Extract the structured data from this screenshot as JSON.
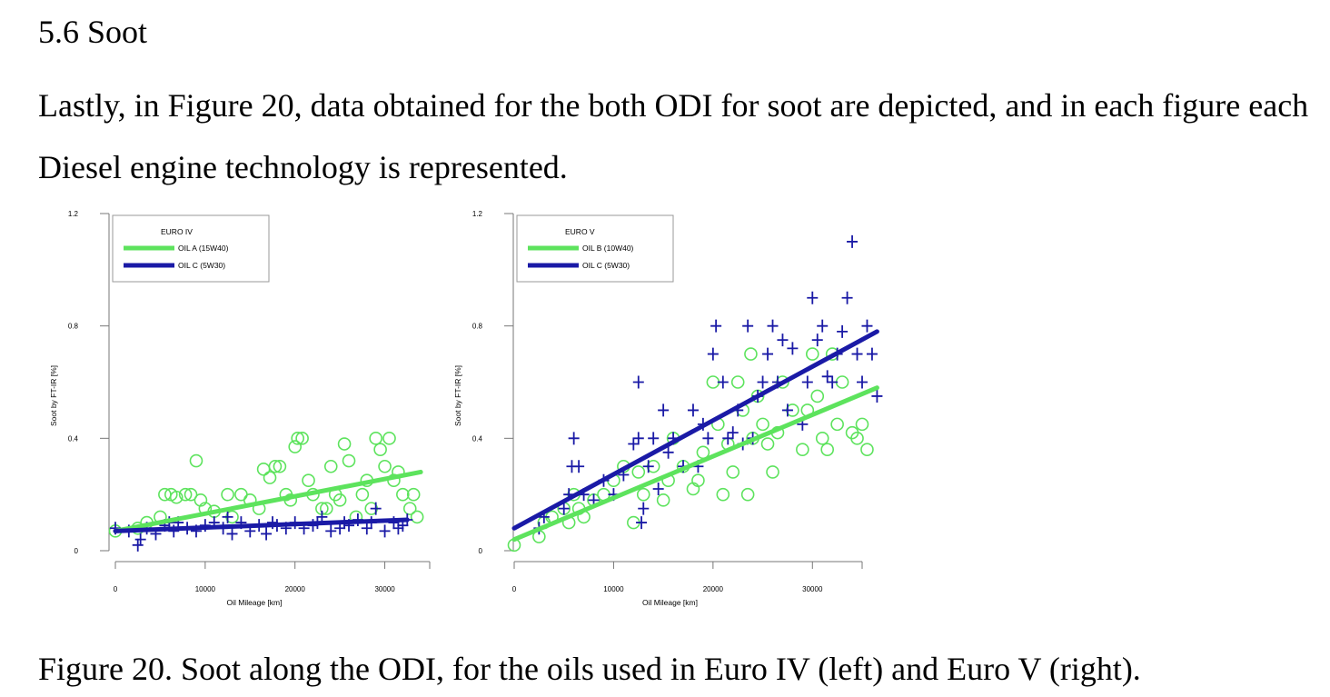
{
  "section": {
    "heading": "5.6 Soot"
  },
  "paragraph": "Lastly, in Figure 20, data obtained for the both ODI for soot are depicted, and in each figure each Diesel engine technology is represented.",
  "caption": "Figure 20. Soot along the ODI, for the oils used in Euro IV (left) and Euro V (right).",
  "colors": {
    "green": "#5de35d",
    "blue": "#1a1aa6"
  },
  "chart_data": [
    {
      "type": "scatter",
      "xlabel": "Oil Mileage [km]",
      "ylabel": "Soot by FT-IR [%]",
      "xlim": [
        0,
        35000
      ],
      "ylim": [
        0,
        1.2
      ],
      "xticks": [
        0,
        10000,
        20000,
        30000
      ],
      "yticks": [
        0,
        0.4,
        0.8,
        1.2
      ],
      "legend_title": "EURO IV",
      "legend_position": "top-left",
      "series": [
        {
          "name": "OIL A (15W40)",
          "marker": "circle",
          "color": "#5de35d",
          "trend": [
            [
              0,
              0.07
            ],
            [
              34000,
              0.28
            ]
          ],
          "points": [
            [
              0,
              0.07
            ],
            [
              2500,
              0.08
            ],
            [
              3500,
              0.1
            ],
            [
              5000,
              0.12
            ],
            [
              5500,
              0.2
            ],
            [
              6200,
              0.2
            ],
            [
              6800,
              0.19
            ],
            [
              7800,
              0.2
            ],
            [
              8400,
              0.2
            ],
            [
              9000,
              0.32
            ],
            [
              9500,
              0.18
            ],
            [
              10000,
              0.15
            ],
            [
              11000,
              0.14
            ],
            [
              12500,
              0.2
            ],
            [
              13000,
              0.12
            ],
            [
              14000,
              0.2
            ],
            [
              15000,
              0.18
            ],
            [
              16000,
              0.15
            ],
            [
              16500,
              0.29
            ],
            [
              17200,
              0.26
            ],
            [
              17800,
              0.3
            ],
            [
              18300,
              0.3
            ],
            [
              19000,
              0.2
            ],
            [
              19500,
              0.18
            ],
            [
              20000,
              0.37
            ],
            [
              20300,
              0.4
            ],
            [
              20800,
              0.4
            ],
            [
              21500,
              0.25
            ],
            [
              22000,
              0.2
            ],
            [
              23000,
              0.15
            ],
            [
              24000,
              0.3
            ],
            [
              24500,
              0.2
            ],
            [
              25000,
              0.18
            ],
            [
              25500,
              0.38
            ],
            [
              26000,
              0.32
            ],
            [
              26800,
              0.12
            ],
            [
              27500,
              0.2
            ],
            [
              28500,
              0.15
            ],
            [
              29000,
              0.4
            ],
            [
              29500,
              0.36
            ],
            [
              30000,
              0.3
            ],
            [
              30500,
              0.4
            ],
            [
              31000,
              0.25
            ],
            [
              31500,
              0.28
            ],
            [
              32000,
              0.2
            ],
            [
              32800,
              0.15
            ],
            [
              33200,
              0.2
            ],
            [
              33600,
              0.12
            ],
            [
              28000,
              0.25
            ],
            [
              23500,
              0.15
            ]
          ]
        },
        {
          "name": "OIL C (5W30)",
          "marker": "plus",
          "color": "#1a1aa6",
          "trend": [
            [
              0,
              0.07
            ],
            [
              32500,
              0.11
            ]
          ],
          "points": [
            [
              0,
              0.08
            ],
            [
              1500,
              0.07
            ],
            [
              2500,
              0.02
            ],
            [
              2800,
              0.04
            ],
            [
              3500,
              0.08
            ],
            [
              4500,
              0.06
            ],
            [
              5500,
              0.09
            ],
            [
              6000,
              0.1
            ],
            [
              6500,
              0.07
            ],
            [
              7000,
              0.1
            ],
            [
              8000,
              0.08
            ],
            [
              9000,
              0.07
            ],
            [
              10000,
              0.09
            ],
            [
              11000,
              0.1
            ],
            [
              12000,
              0.08
            ],
            [
              12500,
              0.12
            ],
            [
              13000,
              0.06
            ],
            [
              14000,
              0.1
            ],
            [
              15000,
              0.07
            ],
            [
              16000,
              0.09
            ],
            [
              16800,
              0.06
            ],
            [
              17500,
              0.1
            ],
            [
              18000,
              0.09
            ],
            [
              19000,
              0.08
            ],
            [
              20000,
              0.1
            ],
            [
              21000,
              0.08
            ],
            [
              22000,
              0.09
            ],
            [
              22500,
              0.1
            ],
            [
              23000,
              0.12
            ],
            [
              24000,
              0.07
            ],
            [
              25000,
              0.08
            ],
            [
              25500,
              0.1
            ],
            [
              26000,
              0.09
            ],
            [
              27000,
              0.11
            ],
            [
              28000,
              0.08
            ],
            [
              28500,
              0.1
            ],
            [
              29000,
              0.15
            ],
            [
              30000,
              0.07
            ],
            [
              31000,
              0.1
            ],
            [
              31500,
              0.08
            ],
            [
              32000,
              0.09
            ],
            [
              32500,
              0.11
            ]
          ]
        }
      ]
    },
    {
      "type": "scatter",
      "xlabel": "Oil Mileage [km]",
      "ylabel": "Soot by FT-IR [%]",
      "xlim": [
        0,
        35000
      ],
      "ylim": [
        0,
        1.2
      ],
      "xticks": [
        0,
        10000,
        20000,
        30000
      ],
      "yticks": [
        0,
        0.4,
        0.8,
        1.2
      ],
      "legend_title": "EURO V",
      "legend_position": "top-left",
      "series": [
        {
          "name": "OIL B (10W40)",
          "marker": "circle",
          "color": "#5de35d",
          "trend": [
            [
              0,
              0.04
            ],
            [
              36500,
              0.58
            ]
          ],
          "points": [
            [
              0,
              0.02
            ],
            [
              2500,
              0.05
            ],
            [
              3000,
              0.1
            ],
            [
              3800,
              0.12
            ],
            [
              5000,
              0.15
            ],
            [
              5500,
              0.1
            ],
            [
              6000,
              0.2
            ],
            [
              6500,
              0.15
            ],
            [
              7000,
              0.12
            ],
            [
              8000,
              0.18
            ],
            [
              9000,
              0.2
            ],
            [
              10000,
              0.25
            ],
            [
              11000,
              0.3
            ],
            [
              12000,
              0.1
            ],
            [
              12500,
              0.28
            ],
            [
              13000,
              0.2
            ],
            [
              14000,
              0.3
            ],
            [
              15000,
              0.18
            ],
            [
              15500,
              0.25
            ],
            [
              16000,
              0.4
            ],
            [
              17000,
              0.3
            ],
            [
              18000,
              0.22
            ],
            [
              18500,
              0.25
            ],
            [
              19000,
              0.35
            ],
            [
              20000,
              0.6
            ],
            [
              20500,
              0.45
            ],
            [
              21000,
              0.2
            ],
            [
              21500,
              0.38
            ],
            [
              22000,
              0.28
            ],
            [
              23000,
              0.5
            ],
            [
              23500,
              0.2
            ],
            [
              24000,
              0.4
            ],
            [
              24500,
              0.55
            ],
            [
              25000,
              0.45
            ],
            [
              25500,
              0.38
            ],
            [
              26000,
              0.28
            ],
            [
              26500,
              0.42
            ],
            [
              27000,
              0.6
            ],
            [
              28000,
              0.5
            ],
            [
              29000,
              0.36
            ],
            [
              29500,
              0.5
            ],
            [
              30000,
              0.7
            ],
            [
              30500,
              0.55
            ],
            [
              31000,
              0.4
            ],
            [
              31500,
              0.36
            ],
            [
              32000,
              0.7
            ],
            [
              32500,
              0.45
            ],
            [
              33000,
              0.6
            ],
            [
              34000,
              0.42
            ],
            [
              34500,
              0.4
            ],
            [
              35000,
              0.45
            ],
            [
              35500,
              0.36
            ],
            [
              23800,
              0.7
            ],
            [
              22500,
              0.6
            ]
          ]
        },
        {
          "name": "OIL C (5W30)",
          "marker": "plus",
          "color": "#1a1aa6",
          "trend": [
            [
              0,
              0.08
            ],
            [
              36500,
              0.78
            ]
          ],
          "points": [
            [
              2500,
              0.08
            ],
            [
              3000,
              0.12
            ],
            [
              5000,
              0.15
            ],
            [
              5500,
              0.2
            ],
            [
              5800,
              0.3
            ],
            [
              6000,
              0.4
            ],
            [
              6500,
              0.3
            ],
            [
              7000,
              0.2
            ],
            [
              8000,
              0.18
            ],
            [
              9000,
              0.25
            ],
            [
              10000,
              0.2
            ],
            [
              11000,
              0.27
            ],
            [
              12000,
              0.38
            ],
            [
              12500,
              0.4
            ],
            [
              12800,
              0.1
            ],
            [
              13000,
              0.15
            ],
            [
              13500,
              0.3
            ],
            [
              14000,
              0.4
            ],
            [
              14500,
              0.22
            ],
            [
              15000,
              0.5
            ],
            [
              15500,
              0.35
            ],
            [
              16000,
              0.4
            ],
            [
              17000,
              0.3
            ],
            [
              18000,
              0.5
            ],
            [
              18500,
              0.3
            ],
            [
              19000,
              0.45
            ],
            [
              19500,
              0.4
            ],
            [
              20000,
              0.7
            ],
            [
              20300,
              0.8
            ],
            [
              21000,
              0.6
            ],
            [
              21500,
              0.4
            ],
            [
              22000,
              0.42
            ],
            [
              22500,
              0.5
            ],
            [
              23000,
              0.38
            ],
            [
              23500,
              0.8
            ],
            [
              24000,
              0.4
            ],
            [
              24500,
              0.55
            ],
            [
              25000,
              0.6
            ],
            [
              25500,
              0.7
            ],
            [
              26000,
              0.8
            ],
            [
              26500,
              0.6
            ],
            [
              27000,
              0.75
            ],
            [
              27500,
              0.5
            ],
            [
              28000,
              0.72
            ],
            [
              29000,
              0.45
            ],
            [
              29500,
              0.6
            ],
            [
              30000,
              0.9
            ],
            [
              30500,
              0.75
            ],
            [
              31000,
              0.8
            ],
            [
              31500,
              0.62
            ],
            [
              32000,
              0.6
            ],
            [
              32500,
              0.7
            ],
            [
              33000,
              0.78
            ],
            [
              33500,
              0.9
            ],
            [
              34000,
              1.1
            ],
            [
              34500,
              0.7
            ],
            [
              35000,
              0.6
            ],
            [
              35500,
              0.8
            ],
            [
              36000,
              0.7
            ],
            [
              36500,
              0.55
            ],
            [
              12500,
              0.6
            ]
          ]
        }
      ]
    }
  ]
}
